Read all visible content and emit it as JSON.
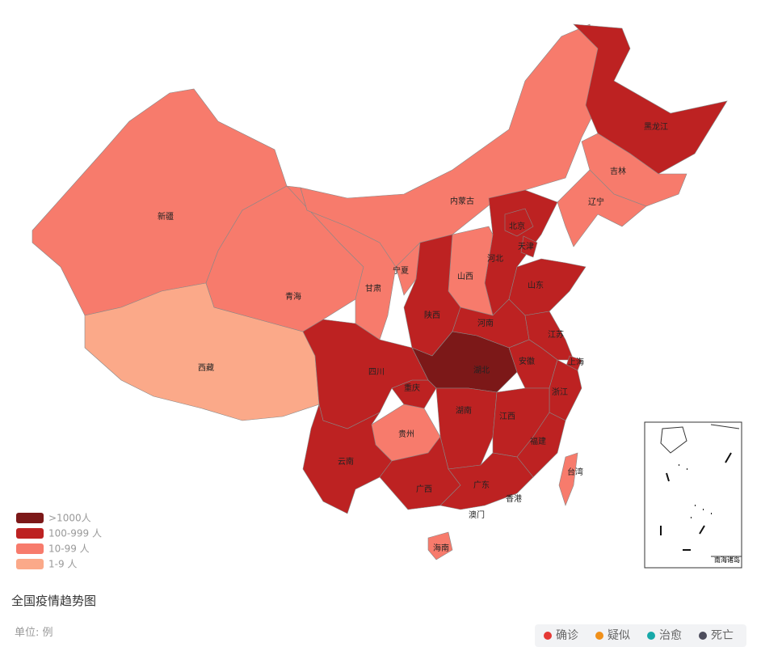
{
  "map": {
    "provinces": [
      {
        "name": "新疆",
        "color": "#f77b6c"
      },
      {
        "name": "西藏",
        "color": "#fba989"
      },
      {
        "name": "青海",
        "color": "#f77b6c"
      },
      {
        "name": "甘肃",
        "color": "#f77b6c"
      },
      {
        "name": "内蒙古",
        "color": "#f77b6c"
      },
      {
        "name": "黑龙江",
        "color": "#bd2222"
      },
      {
        "name": "吉林",
        "color": "#f77b6c"
      },
      {
        "name": "辽宁",
        "color": "#f77b6c"
      },
      {
        "name": "河北",
        "color": "#bd2222"
      },
      {
        "name": "北京",
        "color": "#bd2222"
      },
      {
        "name": "天津",
        "color": "#bd2222"
      },
      {
        "name": "山西",
        "color": "#f77b6c"
      },
      {
        "name": "宁夏",
        "color": "#f77b6c"
      },
      {
        "name": "陕西",
        "color": "#bd2222"
      },
      {
        "name": "山东",
        "color": "#bd2222"
      },
      {
        "name": "河南",
        "color": "#bd2222"
      },
      {
        "name": "江苏",
        "color": "#bd2222"
      },
      {
        "name": "安徽",
        "color": "#bd2222"
      },
      {
        "name": "上海",
        "color": "#bd2222"
      },
      {
        "name": "浙江",
        "color": "#bd2222"
      },
      {
        "name": "湖北",
        "color": "#7c1818"
      },
      {
        "name": "重庆",
        "color": "#bd2222"
      },
      {
        "name": "四川",
        "color": "#bd2222"
      },
      {
        "name": "湖南",
        "color": "#bd2222"
      },
      {
        "name": "江西",
        "color": "#bd2222"
      },
      {
        "name": "福建",
        "color": "#bd2222"
      },
      {
        "name": "贵州",
        "color": "#f77b6c"
      },
      {
        "name": "云南",
        "color": "#bd2222"
      },
      {
        "name": "广西",
        "color": "#bd2222"
      },
      {
        "name": "广东",
        "color": "#bd2222"
      },
      {
        "name": "海南",
        "color": "#f77b6c"
      },
      {
        "name": "台湾",
        "color": "#f77b6c"
      },
      {
        "name": "香港"
      },
      {
        "name": "澳门"
      }
    ],
    "legend": [
      {
        "label": ">1000人",
        "color": "#7c1818"
      },
      {
        "label": "100-999 人",
        "color": "#bd2222"
      },
      {
        "label": "10-99 人",
        "color": "#f77b6c"
      },
      {
        "label": "1-9 人",
        "color": "#fba989"
      }
    ],
    "inset_label": "南海诸岛"
  },
  "title": "全国疫情趋势图",
  "unit": "单位: 例",
  "series_legend": [
    {
      "name": "确诊",
      "color": "#e53935"
    },
    {
      "name": "疑似",
      "color": "#f0901a"
    },
    {
      "name": "治愈",
      "color": "#18a9a9"
    },
    {
      "name": "死亡",
      "color": "#4d4d5c"
    }
  ]
}
